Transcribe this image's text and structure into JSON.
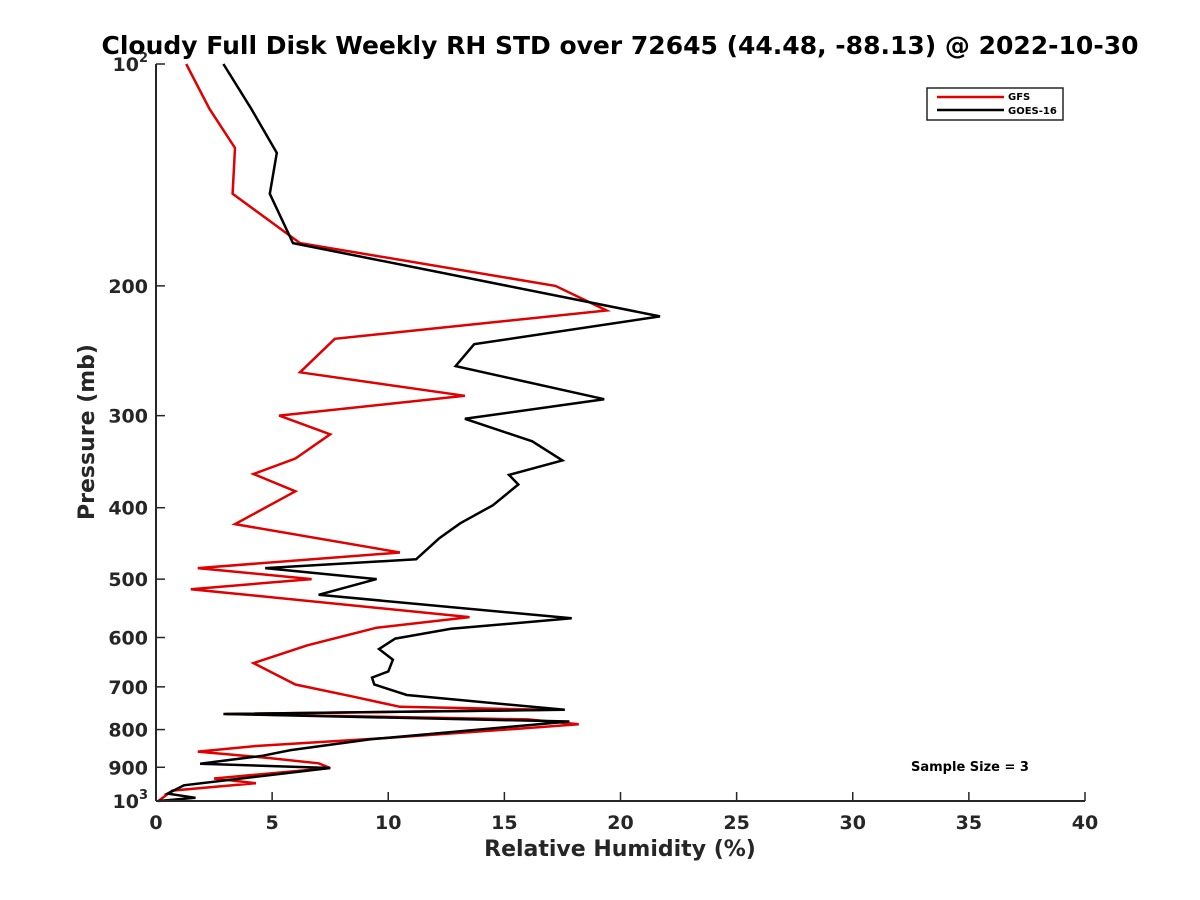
{
  "chart_data": {
    "type": "line",
    "title": "Cloudy Full Disk Weekly RH STD over 72645 (44.48, -88.13) @ 2022-10-30",
    "xlabel": "Relative Humidity (%)",
    "ylabel": "Pressure (mb)",
    "xlim": [
      0,
      40
    ],
    "ylim": [
      100,
      1000
    ],
    "y_scale": "log",
    "y_reversed": true,
    "grid": false,
    "legend_position": "top-right",
    "x_ticks": [
      0,
      5,
      10,
      15,
      20,
      25,
      30,
      35,
      40
    ],
    "x_tick_labels": [
      "0",
      "5",
      "10",
      "15",
      "20",
      "25",
      "30",
      "35",
      "40"
    ],
    "y_ticks": [
      100,
      200,
      300,
      400,
      500,
      600,
      700,
      800,
      900,
      1000
    ],
    "y_tick_labels": [
      {
        "base": "10",
        "sup": "2"
      },
      {
        "base": "200",
        "sup": ""
      },
      {
        "base": "300",
        "sup": ""
      },
      {
        "base": "400",
        "sup": ""
      },
      {
        "base": "500",
        "sup": ""
      },
      {
        "base": "600",
        "sup": ""
      },
      {
        "base": "700",
        "sup": ""
      },
      {
        "base": "800",
        "sup": ""
      },
      {
        "base": "900",
        "sup": ""
      },
      {
        "base": "10",
        "sup": "3"
      }
    ],
    "annotation": "Sample Size = 3",
    "series": [
      {
        "name": "GFS",
        "color": "#e00000",
        "points": [
          [
            1.3,
            100
          ],
          [
            2.3,
            115
          ],
          [
            3.4,
            130
          ],
          [
            3.3,
            150
          ],
          [
            6.2,
            175
          ],
          [
            17.2,
            200
          ],
          [
            19.4,
            216
          ],
          [
            7.7,
            236
          ],
          [
            6.2,
            262
          ],
          [
            13.3,
            282
          ],
          [
            5.3,
            300
          ],
          [
            7.5,
            318
          ],
          [
            6.0,
            343
          ],
          [
            4.2,
            360
          ],
          [
            6.0,
            380
          ],
          [
            3.4,
            421
          ],
          [
            10.5,
            460
          ],
          [
            1.8,
            483
          ],
          [
            6.7,
            500
          ],
          [
            1.5,
            516
          ],
          [
            13.5,
            563
          ],
          [
            9.5,
            582
          ],
          [
            6.5,
            615
          ],
          [
            4.2,
            650
          ],
          [
            6.0,
            695
          ],
          [
            8.5,
            722
          ],
          [
            10.5,
            745
          ],
          [
            17.0,
            752
          ],
          [
            3.0,
            762
          ],
          [
            16.0,
            775
          ],
          [
            18.2,
            787
          ],
          [
            15.3,
            799
          ],
          [
            10.0,
            821
          ],
          [
            4.3,
            842
          ],
          [
            1.8,
            857
          ],
          [
            4.8,
            874
          ],
          [
            7.0,
            889
          ],
          [
            7.5,
            902
          ],
          [
            2.5,
            932
          ],
          [
            4.3,
            946
          ],
          [
            0.7,
            968
          ],
          [
            0.1,
            1000
          ]
        ]
      },
      {
        "name": "GOES-16",
        "color": "#000000",
        "points": [
          [
            2.9,
            100
          ],
          [
            4.1,
            115
          ],
          [
            5.2,
            132
          ],
          [
            4.9,
            150
          ],
          [
            5.9,
            175
          ],
          [
            18.5,
            210
          ],
          [
            21.7,
            220
          ],
          [
            13.7,
            240
          ],
          [
            12.9,
            257
          ],
          [
            19.3,
            285
          ],
          [
            13.3,
            303
          ],
          [
            16.2,
            325
          ],
          [
            17.5,
            345
          ],
          [
            15.2,
            361
          ],
          [
            15.6,
            372
          ],
          [
            14.5,
            397
          ],
          [
            13.1,
            420
          ],
          [
            12.2,
            440
          ],
          [
            11.2,
            470
          ],
          [
            4.7,
            483
          ],
          [
            9.5,
            500
          ],
          [
            7.0,
            525
          ],
          [
            17.9,
            565
          ],
          [
            12.7,
            584
          ],
          [
            10.3,
            602
          ],
          [
            9.6,
            622
          ],
          [
            10.2,
            643
          ],
          [
            10.0,
            667
          ],
          [
            9.3,
            680
          ],
          [
            9.4,
            695
          ],
          [
            10.8,
            718
          ],
          [
            17.6,
            752
          ],
          [
            2.9,
            762
          ],
          [
            17.8,
            780
          ],
          [
            9.2,
            825
          ],
          [
            5.8,
            853
          ],
          [
            4.6,
            868
          ],
          [
            1.9,
            890
          ],
          [
            7.5,
            902
          ],
          [
            1.2,
            952
          ],
          [
            0.5,
            977
          ],
          [
            1.7,
            990
          ],
          [
            0.1,
            1000
          ]
        ]
      }
    ]
  }
}
